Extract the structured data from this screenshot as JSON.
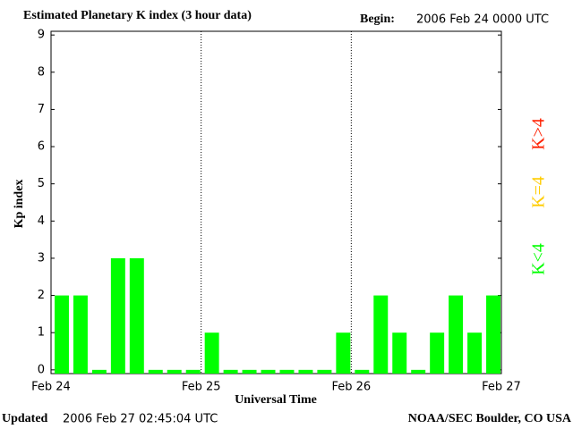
{
  "chart_data": {
    "type": "bar",
    "title": "Estimated Planetary K index (3 hour data)",
    "begin_label": "Begin:",
    "begin": "2006 Feb 24 0000 UTC",
    "y_label": "Kp index",
    "x_label": "Universal Time",
    "updated_label": "Updated",
    "updated": "2006 Feb 27 02:45:04 UTC",
    "source": "NOAA/SEC Boulder, CO USA",
    "categories": [
      null,
      null,
      null,
      null,
      null,
      null,
      null,
      null,
      null,
      null,
      null,
      null,
      null,
      null,
      null,
      null,
      null,
      null,
      null,
      null,
      null,
      null,
      null,
      null
    ],
    "values": [
      2,
      2,
      0,
      3,
      3,
      0,
      0,
      0,
      1,
      0,
      0,
      0,
      0,
      0,
      0,
      1,
      0,
      2,
      1,
      0,
      1,
      2,
      1,
      2
    ],
    "color": "#00ff00",
    "ylim": [
      -0.1,
      9.1
    ],
    "yticks": [
      0,
      1,
      2,
      3,
      4,
      5,
      6,
      7,
      8,
      9
    ],
    "xticks": [
      {
        "value": 0,
        "label": "Feb 24"
      },
      {
        "value": 8,
        "label": "Feb 25"
      },
      {
        "value": 16,
        "label": "Feb 26"
      },
      {
        "value": 24,
        "label": "Feb 27"
      }
    ],
    "legend": [
      {
        "name": "K>4",
        "color": "#ff2000"
      },
      {
        "name": "K=4",
        "color": "#ffcc00"
      },
      {
        "name": "K<4",
        "color": "#00ff00"
      }
    ]
  }
}
